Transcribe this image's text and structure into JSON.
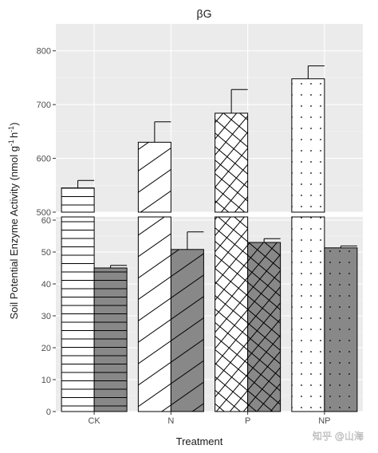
{
  "chart_data": {
    "type": "bar",
    "title": "βG",
    "xlabel": "Treatment",
    "ylabel_parts": [
      "Soil Potential Enzyme Activity (nmol g",
      "-1",
      "h",
      "-1",
      ")"
    ],
    "categories": [
      "CK",
      "N",
      "P",
      "NP"
    ],
    "patterns": [
      "horizontal-lines",
      "diagonal-lines",
      "crosshatch",
      "dots"
    ],
    "colors": {
      "panel_bg": "#ebebeb",
      "grid": "#ffffff",
      "bar_light": "#ffffff",
      "bar_dark": "#888888",
      "pattern": "#000000"
    },
    "y_broken_axis": {
      "upper": {
        "ylim": [
          500,
          850
        ],
        "ticks": [
          500,
          600,
          700,
          800
        ]
      },
      "lower": {
        "ylim": [
          0,
          61
        ],
        "ticks": [
          0,
          10,
          20,
          30,
          40,
          50,
          60
        ]
      }
    },
    "series": [
      {
        "values": [
          545,
          630,
          684,
          748
        ],
        "errors": [
          14,
          38,
          44,
          24
        ]
      },
      {
        "values": [
          45,
          50.8,
          53,
          51.3
        ],
        "errors": [
          0.8,
          5.5,
          1.2,
          0.6
        ]
      }
    ]
  },
  "watermark": "知乎 @山海"
}
